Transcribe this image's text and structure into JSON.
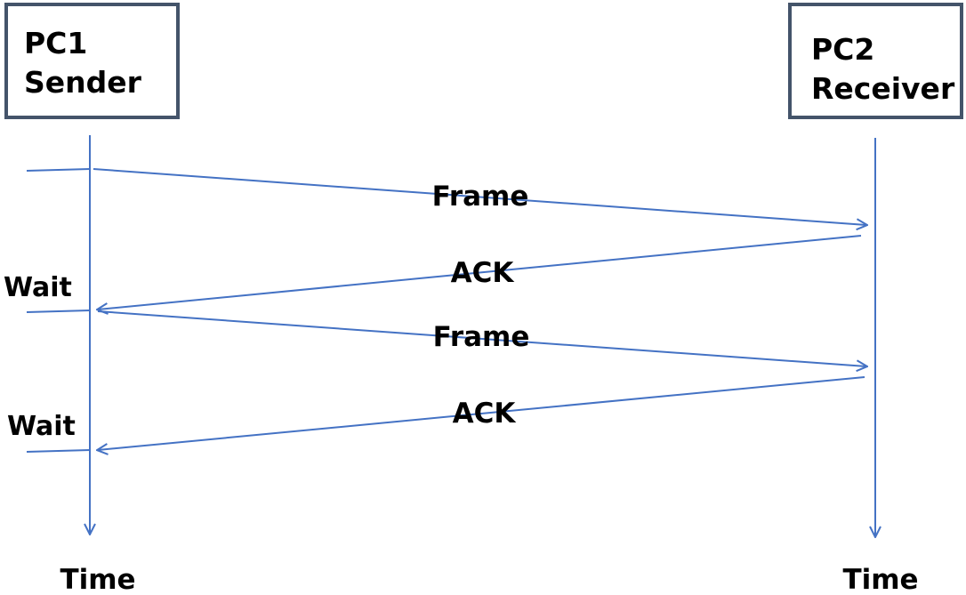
{
  "sender": {
    "line1": "PC1",
    "line2": "Sender"
  },
  "receiver": {
    "line1": "PC2",
    "line2": "Receiver"
  },
  "messages": [
    {
      "label": "Frame",
      "direction": "to-receiver"
    },
    {
      "label": "ACK",
      "direction": "to-sender"
    },
    {
      "label": "Frame",
      "direction": "to-receiver"
    },
    {
      "label": "ACK",
      "direction": "to-sender"
    }
  ],
  "wait_labels": [
    "Wait",
    "Wait"
  ],
  "time_labels": {
    "sender": "Time",
    "receiver": "Time"
  },
  "colors": {
    "arrow": "#4472c4",
    "box_border": "#44546a",
    "text": "#000000"
  }
}
